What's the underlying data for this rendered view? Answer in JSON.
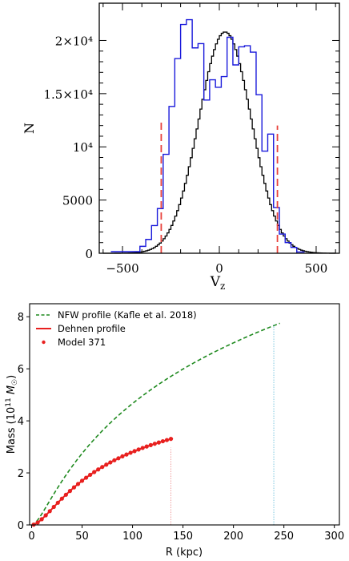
{
  "chart_data": [
    {
      "type": "line",
      "subtype": "histogram",
      "xlabel": "V",
      "xlabel_sub": "z",
      "ylabel": "N",
      "xlim": [
        -620,
        620
      ],
      "ylim": [
        0,
        23500
      ],
      "x_ticks": [
        -500,
        0,
        500
      ],
      "x_tick_labels": [
        "−500",
        "0",
        "500"
      ],
      "y_ticks": [
        0,
        5000,
        10000,
        15000,
        20000
      ],
      "y_tick_labels": [
        "0",
        "5000",
        "10⁴",
        "1.5×10⁴",
        "2×10⁴"
      ],
      "grid": false,
      "legend": "none",
      "colors": {
        "black_series": "#000000",
        "blue_series": "#1a1adb",
        "cut_lines": "#e8413a"
      },
      "series": [
        {
          "values_type": "gaussian_histogram",
          "bin_width": 10,
          "x_range": [
            -600,
            600
          ],
          "mean": 30,
          "sigma": 135,
          "peak": 20800
        },
        {
          "values_type": "step",
          "edges": [
            -560,
            -410,
            -380,
            -350,
            -320,
            -290,
            -260,
            -230,
            -200,
            -170,
            -140,
            -110,
            -80,
            -50,
            -20,
            10,
            40,
            70,
            100,
            130,
            160,
            190,
            220,
            250,
            280,
            310,
            340,
            370,
            400,
            440
          ],
          "values": [
            150,
            650,
            1300,
            2600,
            4200,
            9300,
            13800,
            18300,
            21500,
            21950,
            19300,
            19700,
            14400,
            16300,
            15600,
            16600,
            20300,
            17700,
            19400,
            19500,
            18900,
            14900,
            9600,
            11200,
            4300,
            1800,
            1000,
            550,
            120
          ]
        }
      ],
      "reference_lines": [
        {
          "x": -300,
          "y_top": 12500,
          "style": "dashed"
        },
        {
          "x": 300,
          "y_top": 12000,
          "style": "dashed"
        }
      ]
    },
    {
      "type": "line",
      "xlabel": "R  (kpc)",
      "ylabel": "Mass  (10",
      "ylabel_exp": "11",
      "ylabel_unit": " M",
      "ylabel_sym": "☉",
      "ylabel_close": ")",
      "xlim": [
        -2,
        305
      ],
      "ylim": [
        0,
        8.5
      ],
      "x_ticks": [
        0,
        50,
        100,
        150,
        200,
        250,
        300
      ],
      "x_tick_labels": [
        "0",
        "50",
        "100",
        "150",
        "200",
        "250",
        "300"
      ],
      "y_ticks": [
        0,
        2,
        4,
        6,
        8
      ],
      "y_tick_labels": [
        "0",
        "2",
        "4",
        "6",
        "8"
      ],
      "grid": false,
      "legend": "top-left",
      "colors": {
        "nfw": "#1f8a1f",
        "dehnen": "#e8201f",
        "model": "#e8201f",
        "vline_red": "#f0a0a0",
        "vline_cyan": "#7ec8e0"
      },
      "series": [
        {
          "name": "NFW profile (Kafle et al. 2018)",
          "style": "dashed",
          "model": "nfw",
          "mvir": 7.75,
          "rvir": 246,
          "c": 15.3
        },
        {
          "name": "Dehnen profile",
          "style": "solid",
          "model": "hernquist",
          "mtot": 5.5,
          "a": 40,
          "rmax": 140
        },
        {
          "name": "Model 371",
          "style": "points",
          "model": "hernquist",
          "mtot": 5.5,
          "a": 40,
          "x_start": 2,
          "x_end": 140,
          "x_step": 4
        }
      ],
      "reference_lines": [
        {
          "x": 138,
          "y_top": 2.97,
          "style": "dotted",
          "color": "vline_red"
        },
        {
          "x": 240,
          "y_top": 7.7,
          "style": "dotted",
          "color": "vline_cyan"
        }
      ]
    }
  ]
}
